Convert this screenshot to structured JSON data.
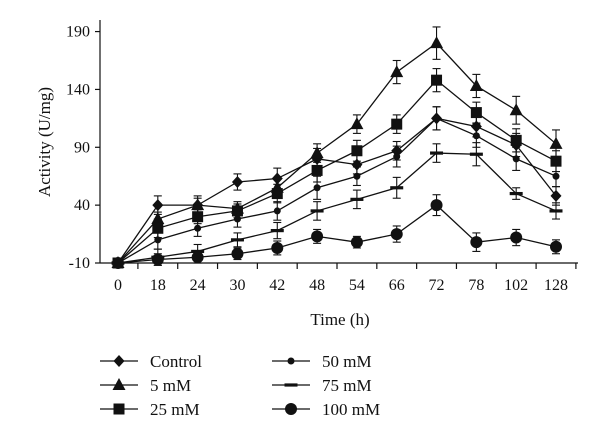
{
  "chart_data": {
    "type": "line",
    "xlabel": "Time (h)",
    "ylabel": "Activity (U/mg)",
    "categories": [
      "0",
      "18",
      "24",
      "30",
      "42",
      "48",
      "54",
      "66",
      "72",
      "78",
      "102",
      "128"
    ],
    "yticks": [
      -10,
      40,
      90,
      140,
      190
    ],
    "ylim": [
      -10,
      200
    ],
    "grid": false,
    "legend_position": "bottom",
    "series": [
      {
        "name": "Control",
        "marker": "diamond",
        "values": [
          -10,
          40,
          40,
          60,
          63,
          80,
          75,
          87,
          115,
          108,
          92,
          48
        ],
        "errors": [
          2,
          8,
          8,
          7,
          9,
          9,
          8,
          8,
          10,
          9,
          10,
          8
        ]
      },
      {
        "name": "5 mM",
        "marker": "triangle",
        "values": [
          -10,
          28,
          40,
          37,
          55,
          85,
          110,
          155,
          180,
          143,
          122,
          93
        ],
        "errors": [
          2,
          6,
          6,
          6,
          8,
          8,
          8,
          10,
          14,
          10,
          12,
          12
        ]
      },
      {
        "name": "25 mM",
        "marker": "square",
        "values": [
          -10,
          20,
          30,
          35,
          50,
          70,
          87,
          110,
          148,
          120,
          96,
          78
        ],
        "errors": [
          2,
          8,
          6,
          6,
          8,
          10,
          9,
          8,
          10,
          9,
          10,
          9
        ]
      },
      {
        "name": "50 mM",
        "marker": "small-circle",
        "values": [
          -10,
          10,
          20,
          28,
          35,
          55,
          65,
          82,
          115,
          100,
          80,
          65
        ],
        "errors": [
          2,
          8,
          7,
          7,
          8,
          10,
          8,
          9,
          10,
          10,
          10,
          9
        ]
      },
      {
        "name": "75 mM",
        "marker": "dash",
        "values": [
          -10,
          -5,
          0,
          10,
          18,
          35,
          45,
          55,
          85,
          84,
          50,
          35
        ],
        "errors": [
          2,
          7,
          6,
          6,
          7,
          8,
          8,
          9,
          8,
          10,
          5,
          7
        ]
      },
      {
        "name": "100 mM",
        "marker": "circle",
        "values": [
          -10,
          -7,
          -5,
          -2,
          3,
          13,
          8,
          15,
          40,
          8,
          12,
          4
        ],
        "errors": [
          2,
          5,
          5,
          5,
          6,
          6,
          5,
          7,
          9,
          8,
          7,
          6
        ]
      }
    ]
  }
}
